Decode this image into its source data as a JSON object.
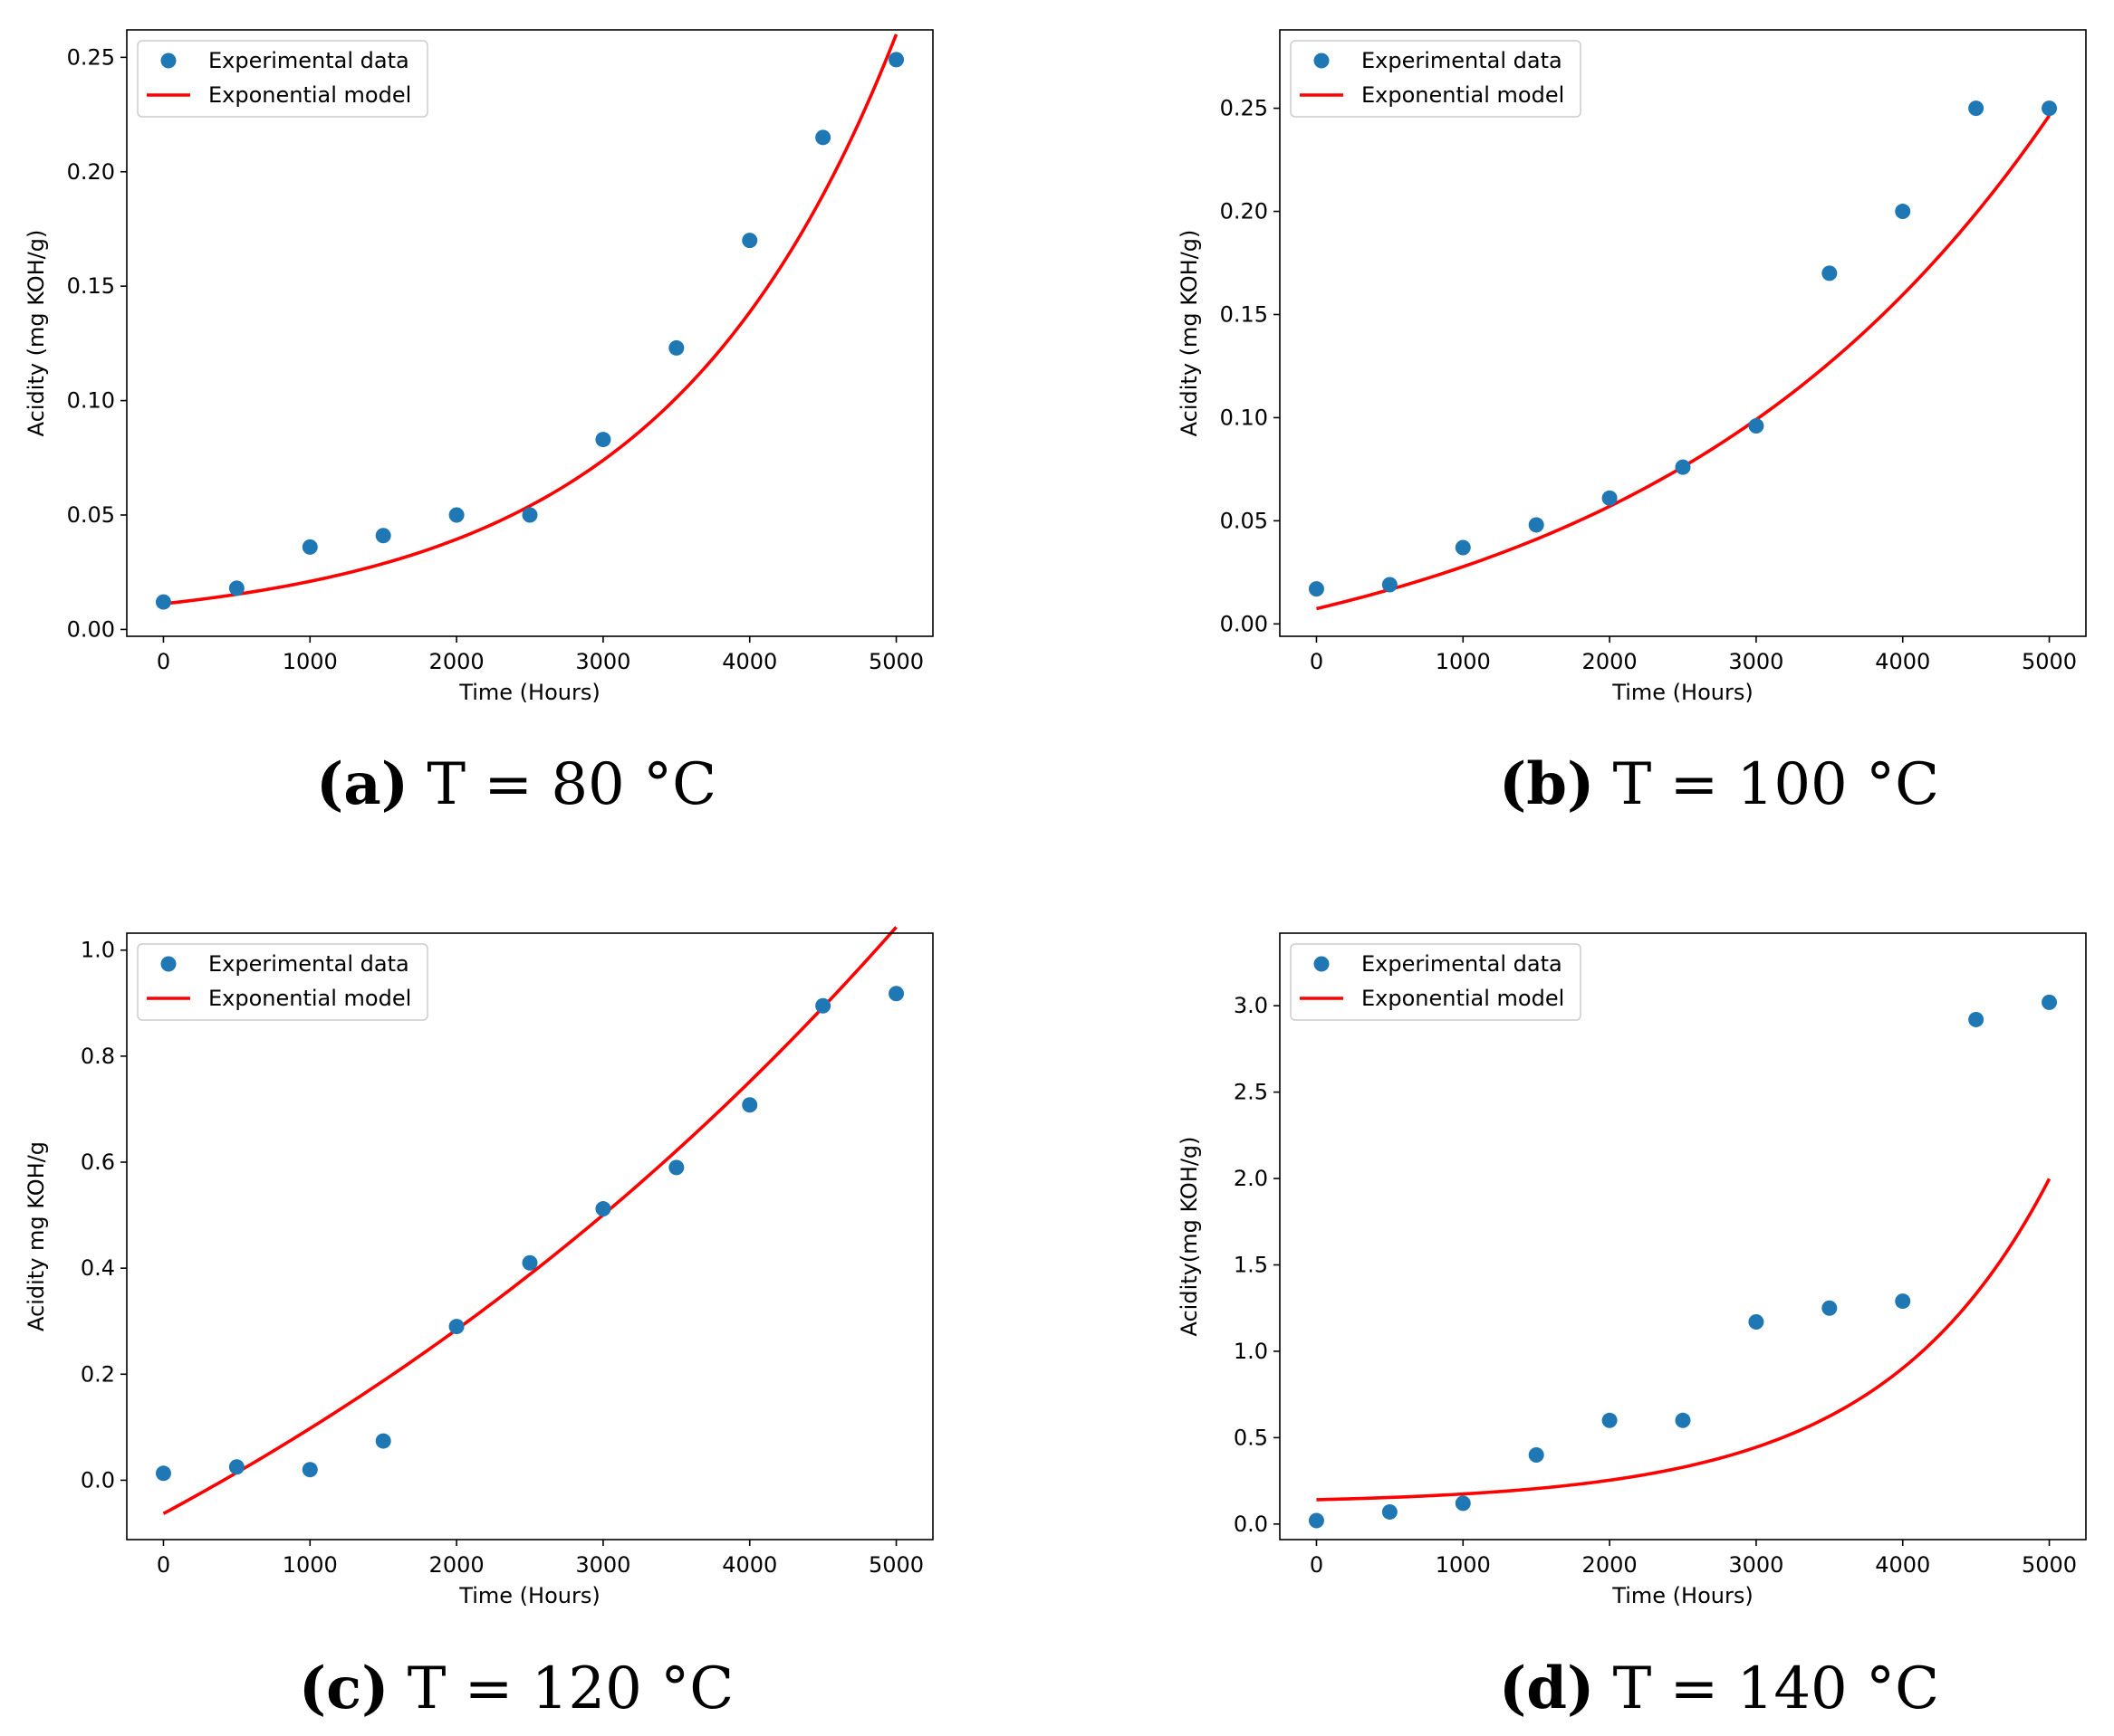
{
  "legend": {
    "scatter_label": "Experimental data",
    "line_label": "Exponential model"
  },
  "colors": {
    "scatter": "#1f77b4",
    "line": "#ff0000",
    "axes": "#000000"
  },
  "chart_data": [
    {
      "type": "scatter",
      "panel": "a",
      "caption": {
        "letter": "(a)",
        "text": "T = 80 °C"
      },
      "xlabel": "Time (Hours)",
      "ylabel": "Acidity (mg KOH/g)",
      "xlim": [
        -250,
        5250
      ],
      "ylim": [
        -0.003,
        0.262
      ],
      "xticks": [
        0,
        1000,
        2000,
        3000,
        4000,
        5000
      ],
      "xtick_labels": [
        "0",
        "1000",
        "2000",
        "3000",
        "4000",
        "5000"
      ],
      "yticks": [
        0.0,
        0.05,
        0.1,
        0.15,
        0.2,
        0.25
      ],
      "ytick_labels": [
        "0.00",
        "0.05",
        "0.10",
        "0.15",
        "0.20",
        "0.25"
      ],
      "legend_position": "top-left",
      "series": [
        {
          "name": "Experimental data",
          "type": "scatter",
          "x": [
            0,
            500,
            1000,
            1500,
            2000,
            2500,
            3000,
            3500,
            4000,
            4500,
            5000
          ],
          "y": [
            0.012,
            0.018,
            0.036,
            0.041,
            0.05,
            0.05,
            0.083,
            0.123,
            0.17,
            0.215,
            0.249
          ]
        },
        {
          "name": "Exponential model",
          "type": "line",
          "model": {
            "a": 0.0112,
            "b": 0.000629,
            "c": 0
          }
        }
      ]
    },
    {
      "type": "scatter",
      "panel": "b",
      "caption": {
        "letter": "(b)",
        "text": "T = 100 °C"
      },
      "xlabel": "Time (Hours)",
      "ylabel": "Acidity (mg KOH/g)",
      "xlim": [
        -250,
        5250
      ],
      "ylim": [
        -0.006,
        0.288
      ],
      "xticks": [
        0,
        1000,
        2000,
        3000,
        4000,
        5000
      ],
      "xtick_labels": [
        "0",
        "1000",
        "2000",
        "3000",
        "4000",
        "5000"
      ],
      "yticks": [
        0.0,
        0.05,
        0.1,
        0.15,
        0.2,
        0.25
      ],
      "ytick_labels": [
        "0.00",
        "0.05",
        "0.10",
        "0.15",
        "0.20",
        "0.25"
      ],
      "legend_position": "top-left",
      "series": [
        {
          "name": "Experimental data",
          "type": "scatter",
          "x": [
            0,
            500,
            1000,
            1500,
            2000,
            2500,
            3000,
            3500,
            4000,
            4500,
            5000
          ],
          "y": [
            0.017,
            0.019,
            0.037,
            0.048,
            0.061,
            0.076,
            0.096,
            0.17,
            0.2,
            0.25,
            0.25
          ]
        },
        {
          "name": "Exponential model",
          "type": "line",
          "model": {
            "a": 0.0465,
            "b": 0.000363,
            "c": -0.0391
          }
        }
      ]
    },
    {
      "type": "scatter",
      "panel": "c",
      "caption": {
        "letter": "(c)",
        "text": "T = 120 °C"
      },
      "xlabel": "Time (Hours)",
      "ylabel": "Acidity mg KOH/g",
      "xlim": [
        -250,
        5250
      ],
      "ylim": [
        -0.112,
        1.032
      ],
      "xticks": [
        0,
        1000,
        2000,
        3000,
        4000,
        5000
      ],
      "xtick_labels": [
        "0",
        "1000",
        "2000",
        "3000",
        "4000",
        "5000"
      ],
      "yticks": [
        0.0,
        0.2,
        0.4,
        0.6,
        0.8,
        1.0
      ],
      "ytick_labels": [
        "0.0",
        "0.2",
        "0.4",
        "0.6",
        "0.8",
        "1.0"
      ],
      "legend_position": "top-left",
      "series": [
        {
          "name": "Experimental data",
          "type": "scatter",
          "x": [
            0,
            500,
            1000,
            1500,
            2000,
            2500,
            3000,
            3500,
            4000,
            4500,
            5000
          ],
          "y": [
            0.013,
            0.025,
            0.02,
            0.074,
            0.29,
            0.41,
            0.512,
            0.59,
            0.708,
            0.895,
            0.918
          ]
        },
        {
          "name": "Exponential model",
          "type": "line",
          "model": {
            "a": 1.0,
            "b": 0.000149,
            "c": -1.063
          }
        }
      ]
    },
    {
      "type": "scatter",
      "panel": "d",
      "caption": {
        "letter": "(d)",
        "text": "T = 140 °C"
      },
      "xlabel": "Time (Hours)",
      "ylabel": "Acidity(mg KOH/g)",
      "xlim": [
        -250,
        5250
      ],
      "ylim": [
        -0.09,
        3.42
      ],
      "xticks": [
        0,
        1000,
        2000,
        3000,
        4000,
        5000
      ],
      "xtick_labels": [
        "0",
        "1000",
        "2000",
        "3000",
        "4000",
        "5000"
      ],
      "yticks": [
        0.0,
        0.5,
        1.0,
        1.5,
        2.0,
        2.5,
        3.0
      ],
      "ytick_labels": [
        "0.0",
        "0.5",
        "1.0",
        "1.5",
        "2.0",
        "2.5",
        "3.0"
      ],
      "legend_position": "top-left",
      "series": [
        {
          "name": "Experimental data",
          "type": "scatter",
          "x": [
            0,
            500,
            1000,
            1500,
            2000,
            2500,
            3000,
            3500,
            4000,
            4500,
            5000
          ],
          "y": [
            0.02,
            0.07,
            0.12,
            0.4,
            0.6,
            0.6,
            1.17,
            1.25,
            1.29,
            2.92,
            3.02
          ]
        },
        {
          "name": "Exponential model",
          "type": "line",
          "model": {
            "a": 0.0238,
            "b": 0.000874,
            "c": 0.117
          }
        }
      ]
    }
  ]
}
